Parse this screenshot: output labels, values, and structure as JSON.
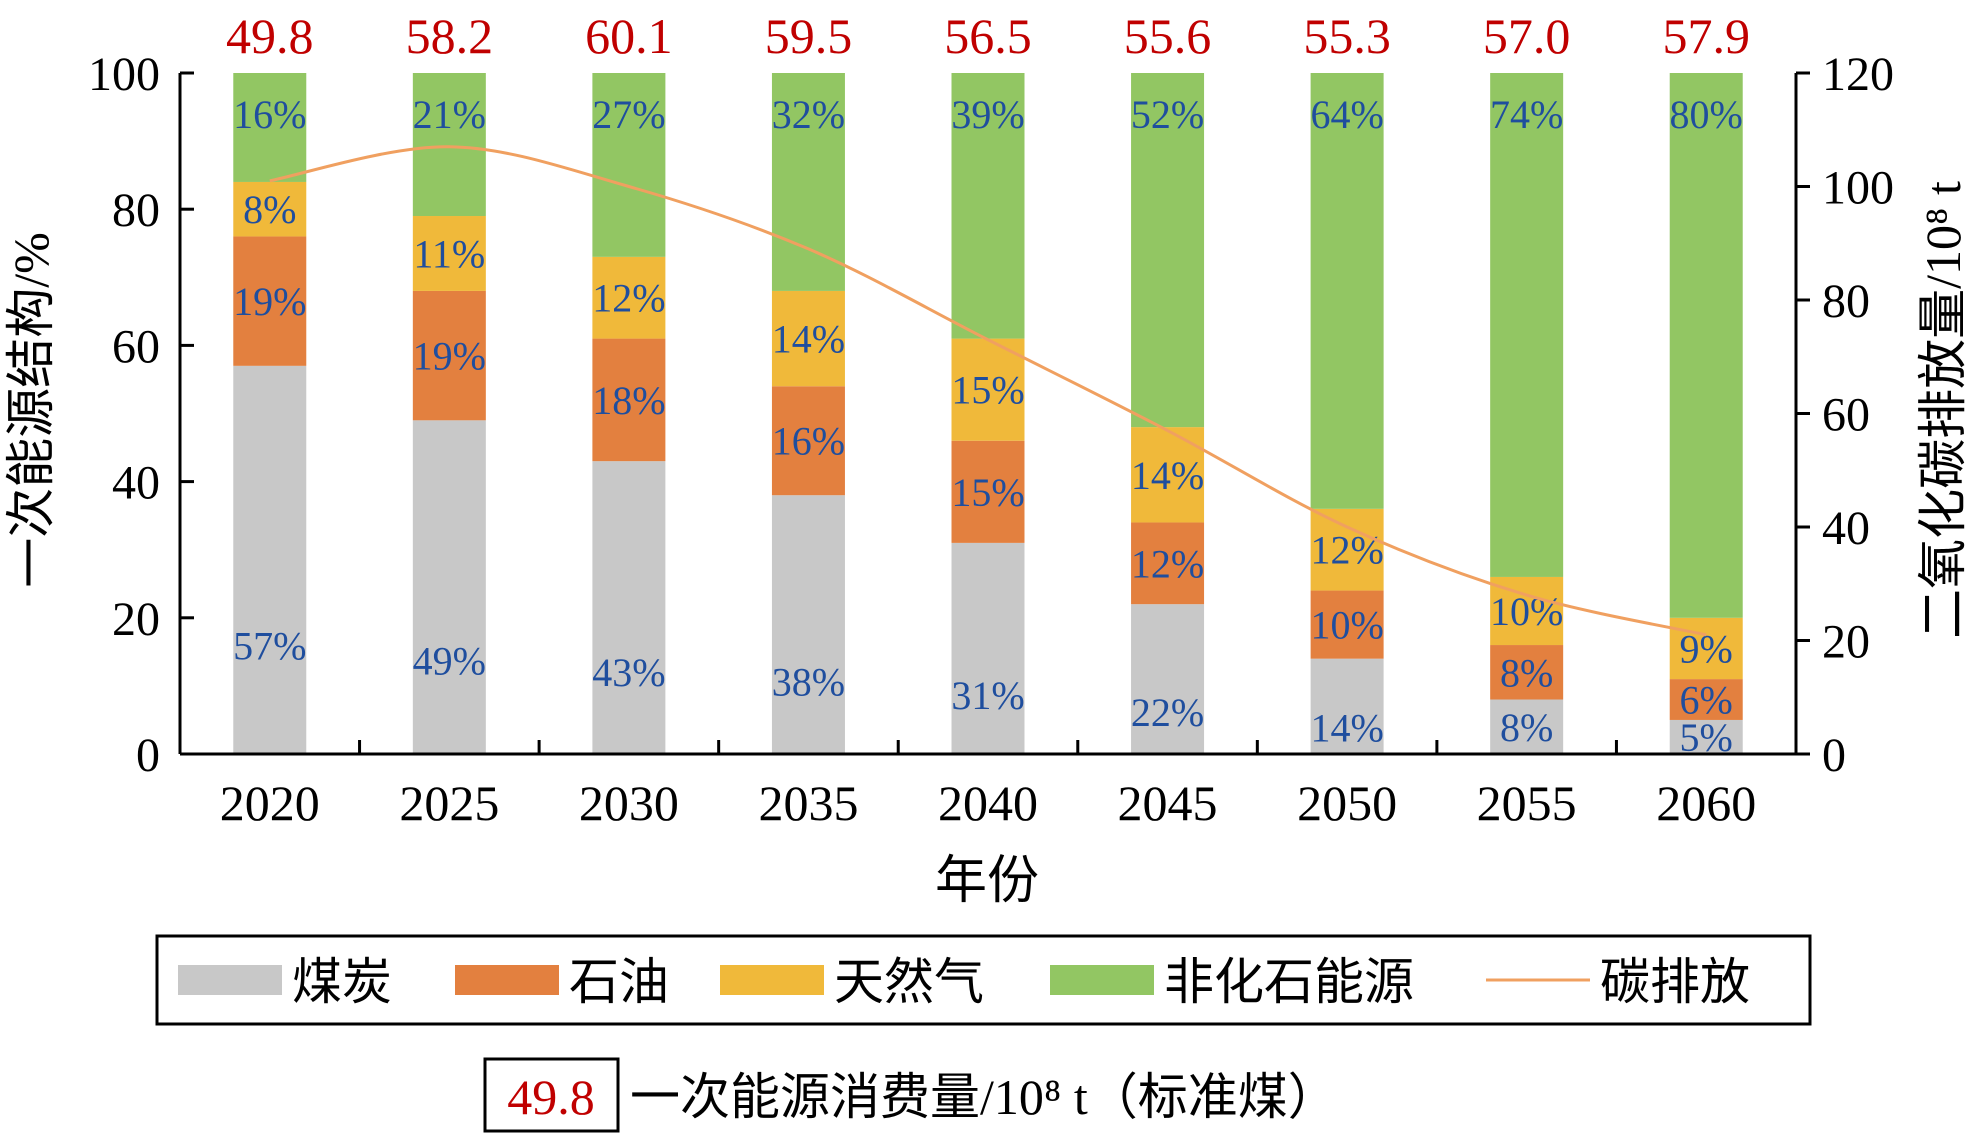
{
  "chart_data": {
    "type": "bar",
    "stacked": true,
    "categories": [
      "2020",
      "2025",
      "2030",
      "2035",
      "2040",
      "2045",
      "2050",
      "2055",
      "2060"
    ],
    "series": [
      {
        "name": "煤炭",
        "color": "#c8c8c8",
        "values": [
          57,
          49,
          43,
          38,
          31,
          22,
          14,
          8,
          5
        ]
      },
      {
        "name": "石油",
        "color": "#e3803f",
        "values": [
          19,
          19,
          18,
          16,
          15,
          12,
          10,
          8,
          6
        ]
      },
      {
        "name": "天然气",
        "color": "#f0b93a",
        "values": [
          8,
          11,
          12,
          14,
          15,
          14,
          12,
          10,
          9
        ]
      },
      {
        "name": "非化石能源",
        "color": "#92c663",
        "values": [
          16,
          21,
          27,
          32,
          39,
          52,
          64,
          74,
          80
        ]
      }
    ],
    "segment_labels": [
      [
        "57%",
        "49%",
        "43%",
        "38%",
        "31%",
        "22%",
        "14%",
        "8%",
        "5%"
      ],
      [
        "19%",
        "19%",
        "18%",
        "16%",
        "15%",
        "12%",
        "10%",
        "8%",
        "6%"
      ],
      [
        "8%",
        "11%",
        "12%",
        "14%",
        "15%",
        "14%",
        "12%",
        "10%",
        "9%"
      ],
      [
        "16%",
        "21%",
        "27%",
        "32%",
        "39%",
        "52%",
        "64%",
        "74%",
        "80%"
      ]
    ],
    "line_series": {
      "name": "碳排放",
      "axis": "right",
      "color": "#f0a060",
      "values": [
        101,
        107,
        100,
        89,
        73,
        57,
        40,
        28,
        21
      ]
    },
    "top_labels": [
      "49.8",
      "58.2",
      "60.1",
      "59.5",
      "56.5",
      "55.6",
      "55.3",
      "57.0",
      "57.9"
    ],
    "top_label_color": "#c00000",
    "segment_label_color": "#1f4e9e",
    "xlabel": "年份",
    "ylabel_left": "一次能源结构/%",
    "ylabel_right": "二氧化碳排放量/10⁸ t",
    "ylim_left": [
      0,
      100
    ],
    "ylim_right": [
      0,
      120
    ],
    "yticks_left": [
      "0",
      "20",
      "40",
      "60",
      "80",
      "100"
    ],
    "yticks_right": [
      "0",
      "20",
      "40",
      "60",
      "80",
      "100",
      "120"
    ],
    "grid": false,
    "legend_position": "bottom",
    "footnote": {
      "boxed_value": "49.8",
      "text": "一次能源消费量/10⁸ t（标准煤）"
    }
  }
}
